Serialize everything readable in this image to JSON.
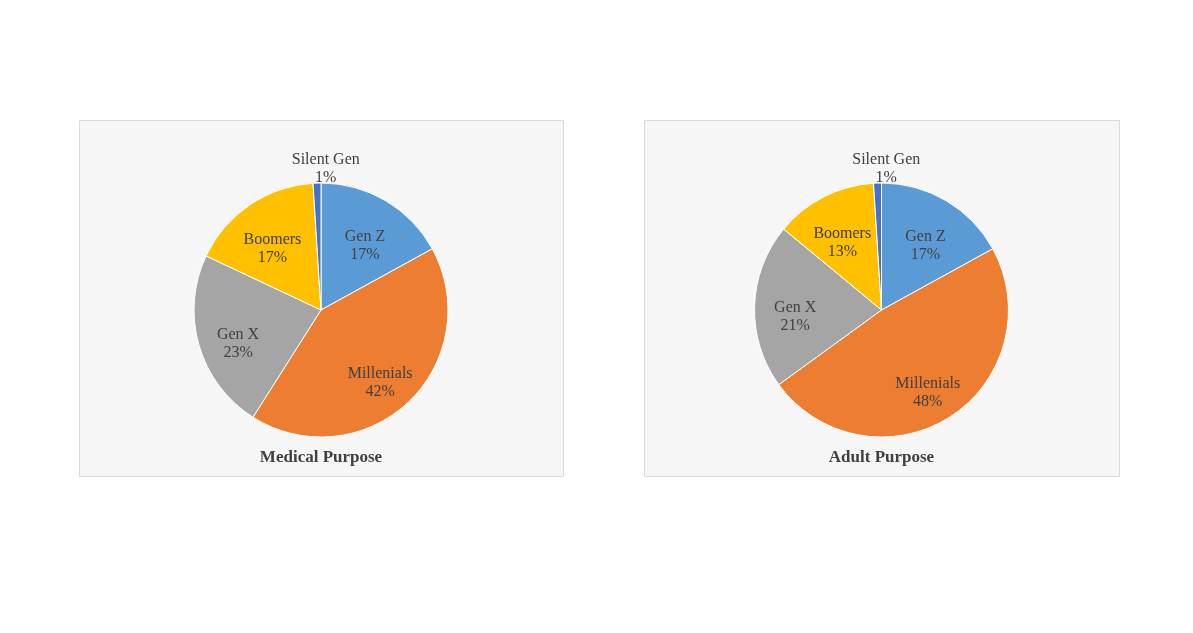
{
  "chart_data": [
    {
      "type": "pie",
      "title": "Medical Purpose",
      "categories": [
        "Gen Z",
        "Millenials",
        "Gen X",
        "Boomers",
        "Silent Gen"
      ],
      "values": [
        17,
        42,
        23,
        17,
        1
      ],
      "colors": [
        "#5b9bd5",
        "#ed7d31",
        "#a5a5a5",
        "#ffc000",
        "#4472c4"
      ],
      "value_labels": [
        "17%",
        "42%",
        "23%",
        "17%",
        "1%"
      ]
    },
    {
      "type": "pie",
      "title": "Adult Purpose",
      "categories": [
        "Gen Z",
        "Millenials",
        "Gen X",
        "Boomers",
        "Silent Gen"
      ],
      "values": [
        17,
        48,
        21,
        13,
        1
      ],
      "colors": [
        "#5b9bd5",
        "#ed7d31",
        "#a5a5a5",
        "#ffc000",
        "#4472c4"
      ],
      "value_labels": [
        "17%",
        "48%",
        "21%",
        "13%",
        "1%"
      ]
    }
  ]
}
